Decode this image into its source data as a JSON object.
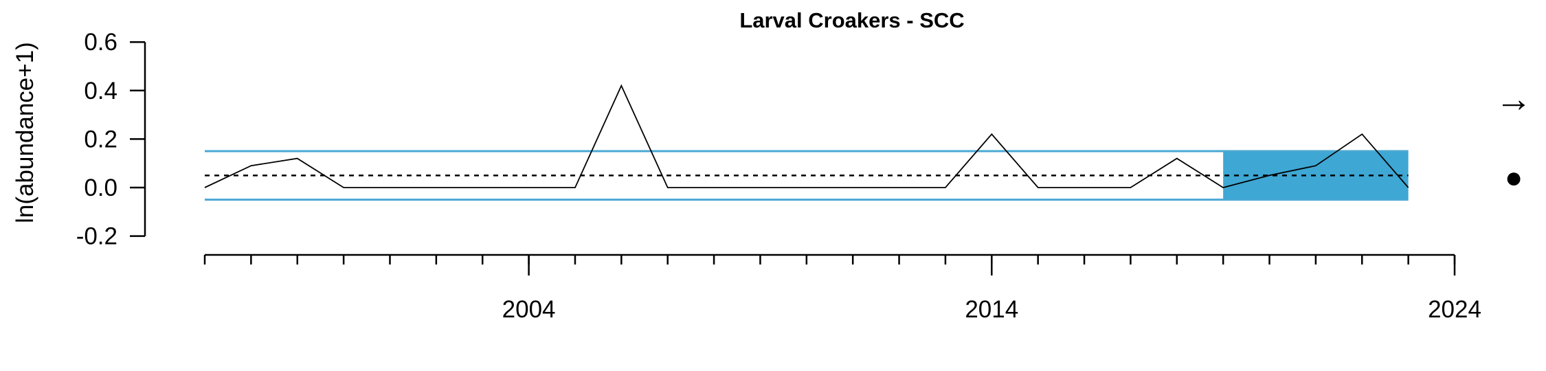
{
  "chart_data": {
    "type": "line",
    "title": "Larval Croakers - SCC",
    "xlabel": "",
    "ylabel": "ln(abundance+1)",
    "xlim": [
      1997,
      2024
    ],
    "ylim": [
      -0.2,
      0.6
    ],
    "x_tick_labels": [
      "2004",
      "2014",
      "2024"
    ],
    "y_tick_labels": [
      "-0.2",
      "0.0",
      "0.2",
      "0.4",
      "0.6"
    ],
    "series": [
      {
        "x": [
          1997,
          1998,
          1999,
          2000,
          2001,
          2002,
          2003,
          2004,
          2005,
          2006,
          2007,
          2008,
          2009,
          2010,
          2011,
          2012,
          2013,
          2014,
          2015,
          2016,
          2017,
          2018,
          2019,
          2020,
          2021,
          2022,
          2023
        ],
        "values": [
          0.0,
          0.09,
          0.12,
          0.0,
          0.0,
          0.0,
          0.0,
          0.0,
          0.0,
          0.42,
          0.0,
          0.0,
          0.0,
          0.0,
          0.0,
          0.0,
          0.0,
          0.22,
          0.0,
          0.0,
          0.0,
          0.12,
          0.0,
          0.05,
          0.09,
          0.22,
          0.0
        ]
      }
    ],
    "mean": 0.05,
    "upper_sd": 0.15,
    "lower_sd": -0.05,
    "recent_window": [
      2019,
      2023
    ],
    "colors": {
      "sd_lines": "#4aa8d4",
      "recent_fill": "#3ea7d4",
      "series": "#000000"
    },
    "trend_symbol": "→",
    "mean_symbol": "●"
  }
}
